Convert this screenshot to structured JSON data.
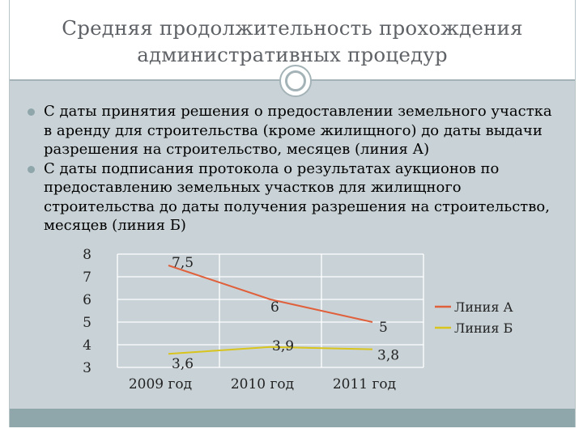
{
  "title": "Средняя продолжительность прохождения административных процедур",
  "bullets": [
    "С даты принятия решения о предоставлении земельного участка в аренду для строительства (кроме жилищного) до даты выдачи разрешения на строительство, месяцев (линия А)",
    "С даты подписания протокола о результатах аукционов по предоставлению земельных участков для жилищного строительства до даты получения разрешения на строительство, месяцев (линия Б)"
  ],
  "chart_data": {
    "type": "line",
    "categories": [
      "2009 год",
      "2010  год",
      "2011 год"
    ],
    "series": [
      {
        "name": "Линия А",
        "values": [
          7.5,
          6,
          5
        ],
        "labels": [
          "7,5",
          "6",
          "5"
        ],
        "color": "#e0603c"
      },
      {
        "name": "Линия Б",
        "values": [
          3.6,
          3.9,
          3.8
        ],
        "labels": [
          "3,6",
          "3,9",
          "3,8"
        ],
        "color": "#d8c41c"
      }
    ],
    "yticks": [
      "3",
      "4",
      "5",
      "6",
      "7",
      "8"
    ],
    "ylim": [
      3,
      8
    ],
    "grid": true,
    "legend": "right",
    "colors": {
      "grid": "#ffffff",
      "text": "#222222"
    }
  }
}
